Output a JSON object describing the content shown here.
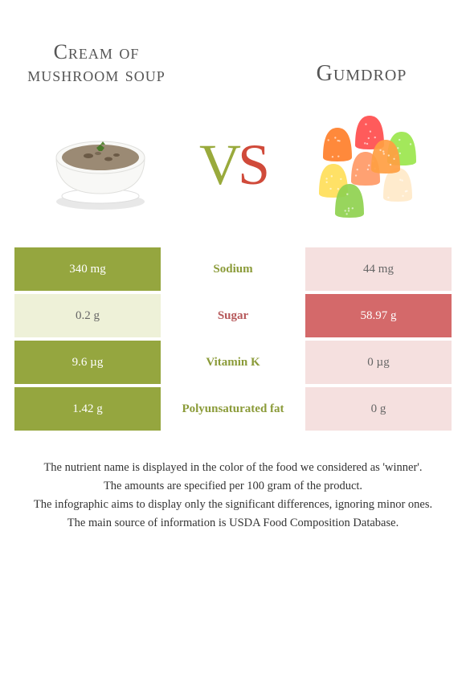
{
  "titles": {
    "left": "Cream of mushroom soup",
    "right": "Gumdrop"
  },
  "vs": {
    "v": "V",
    "s": "S"
  },
  "colors": {
    "green_dark": "#95a63f",
    "green_light": "#eef1d8",
    "red_dark": "#d4696a",
    "red_light": "#f5e0df",
    "green_text": "#8b9b39",
    "red_text": "#b6585a"
  },
  "rows": [
    {
      "left": "340 mg",
      "mid": "Sodium",
      "right": "44 mg",
      "winner": "left"
    },
    {
      "left": "0.2 g",
      "mid": "Sugar",
      "right": "58.97 g",
      "winner": "right"
    },
    {
      "left": "9.6 µg",
      "mid": "Vitamin K",
      "right": "0 µg",
      "winner": "left"
    },
    {
      "left": "1.42 g",
      "mid": "Polyunsaturated fat",
      "right": "0 g",
      "winner": "left"
    }
  ],
  "footer": {
    "l1": "The nutrient name is displayed in the color of the food we considered as 'winner'.",
    "l2": "The amounts are specified per 100 gram of the product.",
    "l3": "The infographic aims to display only the significant differences, ignoring minor ones.",
    "l4": "The main source of information is USDA Food Composition Database."
  },
  "gumdrop_colors": [
    "#ff7f2a",
    "#ff4d4d",
    "#9be64d",
    "#ffde59",
    "#ff9966",
    "#ffe9c9",
    "#8fd14f",
    "#ff9e42"
  ]
}
